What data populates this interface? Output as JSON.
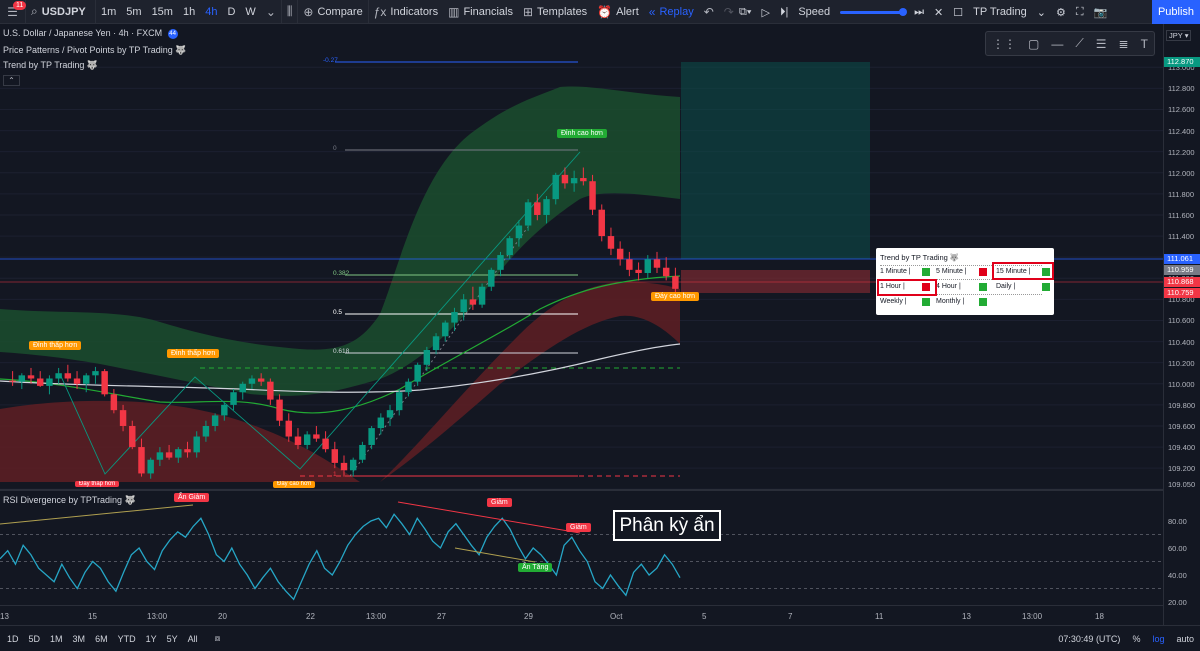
{
  "toolbar": {
    "menu_badge": "11",
    "symbol": "USDJPY",
    "intervals": [
      "1m",
      "5m",
      "15m",
      "1h",
      "4h",
      "D",
      "W"
    ],
    "active_interval": "4h",
    "compare": "Compare",
    "indicators": "Indicators",
    "financials": "Financials",
    "templates": "Templates",
    "alert": "Alert",
    "replay": "Replay",
    "speed": "Speed",
    "strategy": "TP Trading",
    "publish": "Publish"
  },
  "legends": {
    "main": "U.S. Dollar / Japanese Yen · 4h · FXCM",
    "indicator_count": "44",
    "ind1": "Price Patterns / Pivot Points by TP Trading 🐺",
    "ind2": "Trend by TP Trading 🐺",
    "rsi": "RSI Divergence by TPTrading 🐺"
  },
  "price_axis": {
    "unit": "JPY ▾",
    "ticks": [
      "113.000",
      "112.800",
      "112.600",
      "112.400",
      "112.200",
      "112.000",
      "111.800",
      "111.600",
      "111.400",
      "111.200",
      "111.000",
      "110.800",
      "110.600",
      "110.400",
      "110.200",
      "110.000",
      "109.800",
      "109.600",
      "109.400",
      "109.200",
      "109.050"
    ],
    "labels": [
      {
        "text": "112.870",
        "color": "#089981"
      },
      {
        "text": "111.061",
        "color": "#2962ff"
      },
      {
        "text": "110.959",
        "color": "#787b86"
      },
      {
        "text": "110.868",
        "color": "#f23645"
      },
      {
        "text": "110.759",
        "color": "#f23645"
      }
    ],
    "rsi_ticks": [
      "80.00",
      "60.00",
      "40.00",
      "20.00"
    ]
  },
  "time_axis": [
    "13",
    "15",
    "13:00",
    "20",
    "22",
    "13:00",
    "27",
    "29",
    "Oct",
    "5",
    "7",
    "11",
    "13",
    "13:00",
    "18"
  ],
  "fib_levels": [
    "-0.27",
    "0",
    "0.382",
    "0.5",
    "0.618",
    "1"
  ],
  "tags": {
    "dinh_cao_hon": "Đỉnh cao hơn",
    "day_cao_hon_1": "Đáy cao hơn",
    "dinh_thap_hon_1": "Đỉnh thấp hơn",
    "dinh_thap_hon_2": "Đỉnh thấp hơn",
    "day_thap_hon": "Đáy thấp hơn",
    "day_cao_hon_2": "Đáy cao hơn",
    "an_giam": "Ẩn Giảm",
    "giam_1": "Giảm",
    "giam_2": "Giảm",
    "an_tang": "Ẩn Tăng"
  },
  "annotation": "Phân kỳ ẩn",
  "trend_panel": {
    "title": "Trend by TP Trading 🐺",
    "rows": [
      [
        {
          "label": "1 Minute",
          "state": "up"
        },
        {
          "label": "5 Minute",
          "state": "down"
        },
        {
          "label": "15 Minute",
          "state": "up"
        }
      ],
      [
        {
          "label": "1 Hour",
          "state": "down"
        },
        {
          "label": "4 Hour",
          "state": "up"
        },
        {
          "label": "Daily",
          "state": "up"
        }
      ],
      [
        {
          "label": "Weekly",
          "state": "up"
        },
        {
          "label": "Monthly",
          "state": "up"
        }
      ]
    ]
  },
  "colors": {
    "up": "#089981",
    "down": "#f23645",
    "accent": "#2962ff",
    "panel_up": "#22ab34",
    "panel_down": "#e0001a"
  },
  "bottombar": {
    "ranges": [
      "1D",
      "5D",
      "1M",
      "3M",
      "6M",
      "YTD",
      "1Y",
      "5Y",
      "All"
    ],
    "clock": "07:30:49 (UTC)",
    "pct": "%",
    "log": "log",
    "auto": "auto"
  },
  "chart_data": {
    "type": "candlestick",
    "ylim": [
      109.05,
      113.05
    ],
    "candles": [
      [
        110.03,
        110.12,
        109.98,
        110.02
      ],
      [
        110.02,
        110.1,
        109.95,
        110.08
      ],
      [
        110.08,
        110.15,
        110.0,
        110.05
      ],
      [
        110.05,
        110.12,
        109.97,
        109.98
      ],
      [
        109.98,
        110.08,
        109.9,
        110.05
      ],
      [
        110.05,
        110.15,
        110.0,
        110.1
      ],
      [
        110.1,
        110.18,
        110.02,
        110.05
      ],
      [
        110.05,
        110.12,
        109.95,
        110.0
      ],
      [
        110.0,
        110.1,
        109.92,
        110.08
      ],
      [
        110.08,
        110.16,
        110.0,
        110.12
      ],
      [
        110.12,
        110.14,
        109.88,
        109.9
      ],
      [
        109.9,
        109.95,
        109.72,
        109.75
      ],
      [
        109.75,
        109.8,
        109.55,
        109.6
      ],
      [
        109.6,
        109.65,
        109.38,
        109.4
      ],
      [
        109.4,
        109.48,
        109.12,
        109.15
      ],
      [
        109.15,
        109.3,
        109.1,
        109.28
      ],
      [
        109.28,
        109.4,
        109.22,
        109.35
      ],
      [
        109.35,
        109.42,
        109.28,
        109.3
      ],
      [
        109.3,
        109.4,
        109.25,
        109.38
      ],
      [
        109.38,
        109.45,
        109.3,
        109.35
      ],
      [
        109.35,
        109.55,
        109.3,
        109.5
      ],
      [
        109.5,
        109.65,
        109.45,
        109.6
      ],
      [
        109.6,
        109.72,
        109.55,
        109.7
      ],
      [
        109.7,
        109.82,
        109.65,
        109.8
      ],
      [
        109.8,
        109.95,
        109.75,
        109.92
      ],
      [
        109.92,
        110.02,
        109.85,
        110.0
      ],
      [
        110.0,
        110.08,
        109.95,
        110.05
      ],
      [
        110.05,
        110.1,
        109.98,
        110.02
      ],
      [
        110.02,
        110.05,
        109.8,
        109.85
      ],
      [
        109.85,
        109.9,
        109.6,
        109.65
      ],
      [
        109.65,
        109.72,
        109.45,
        109.5
      ],
      [
        109.5,
        109.58,
        109.38,
        109.42
      ],
      [
        109.42,
        109.55,
        109.38,
        109.52
      ],
      [
        109.52,
        109.6,
        109.45,
        109.48
      ],
      [
        109.48,
        109.55,
        109.35,
        109.38
      ],
      [
        109.38,
        109.45,
        109.2,
        109.25
      ],
      [
        109.25,
        109.32,
        109.12,
        109.18
      ],
      [
        109.18,
        109.3,
        109.12,
        109.28
      ],
      [
        109.28,
        109.45,
        109.25,
        109.42
      ],
      [
        109.42,
        109.6,
        109.38,
        109.58
      ],
      [
        109.58,
        109.72,
        109.52,
        109.68
      ],
      [
        109.68,
        109.8,
        109.6,
        109.75
      ],
      [
        109.75,
        109.95,
        109.7,
        109.92
      ],
      [
        109.92,
        110.05,
        109.88,
        110.02
      ],
      [
        110.02,
        110.2,
        109.98,
        110.18
      ],
      [
        110.18,
        110.35,
        110.12,
        110.32
      ],
      [
        110.32,
        110.48,
        110.28,
        110.45
      ],
      [
        110.45,
        110.6,
        110.4,
        110.58
      ],
      [
        110.58,
        110.72,
        110.5,
        110.68
      ],
      [
        110.68,
        110.85,
        110.6,
        110.8
      ],
      [
        110.8,
        110.92,
        110.7,
        110.75
      ],
      [
        110.75,
        110.95,
        110.72,
        110.92
      ],
      [
        110.92,
        111.1,
        110.88,
        111.08
      ],
      [
        111.08,
        111.25,
        111.02,
        111.22
      ],
      [
        111.22,
        111.4,
        111.18,
        111.38
      ],
      [
        111.38,
        111.55,
        111.3,
        111.5
      ],
      [
        111.5,
        111.75,
        111.45,
        111.72
      ],
      [
        111.72,
        111.8,
        111.55,
        111.6
      ],
      [
        111.6,
        111.78,
        111.52,
        111.75
      ],
      [
        111.75,
        112.0,
        111.7,
        111.98
      ],
      [
        111.98,
        112.05,
        111.85,
        111.9
      ],
      [
        111.9,
        112.02,
        111.82,
        111.95
      ],
      [
        111.95,
        112.05,
        111.88,
        111.92
      ],
      [
        111.92,
        111.98,
        111.6,
        111.65
      ],
      [
        111.65,
        111.7,
        111.35,
        111.4
      ],
      [
        111.4,
        111.48,
        111.22,
        111.28
      ],
      [
        111.28,
        111.35,
        111.12,
        111.18
      ],
      [
        111.18,
        111.25,
        111.02,
        111.08
      ],
      [
        111.08,
        111.15,
        110.98,
        111.05
      ],
      [
        111.05,
        111.22,
        111.0,
        111.18
      ],
      [
        111.18,
        111.25,
        111.05,
        111.1
      ],
      [
        111.1,
        111.2,
        110.98,
        111.02
      ],
      [
        111.02,
        111.1,
        110.85,
        110.9
      ]
    ],
    "rsi": [
      52,
      58,
      48,
      62,
      55,
      45,
      40,
      35,
      48,
      38,
      30,
      42,
      50,
      45,
      35,
      28,
      42,
      55,
      60,
      50,
      44,
      58,
      66,
      72,
      68,
      76,
      82,
      70,
      55,
      50,
      60,
      48,
      40,
      30,
      38,
      45,
      35,
      28,
      22,
      35,
      48,
      58,
      45,
      40,
      50,
      62,
      70,
      76,
      80,
      82,
      75,
      85,
      78,
      70,
      82,
      74,
      65,
      60,
      72,
      78,
      70,
      62,
      55,
      68,
      76,
      82,
      74,
      62,
      52,
      60,
      55,
      48,
      40,
      62,
      68,
      58,
      50,
      35,
      30,
      40,
      32,
      25,
      42,
      48,
      40,
      45,
      55,
      48,
      38
    ]
  }
}
